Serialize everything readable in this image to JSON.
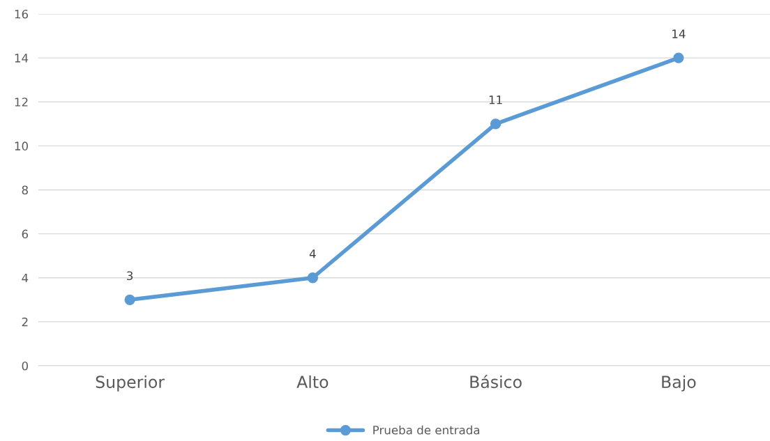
{
  "chart_data": {
    "type": "line",
    "categories": [
      "Superior",
      "Alto",
      "Básico",
      "Bajo"
    ],
    "series": [
      {
        "name": "Prueba de entrada",
        "color": "#5b9bd5",
        "values": [
          3,
          4,
          11,
          14
        ]
      }
    ],
    "ylim": [
      0,
      16
    ],
    "yticks": [
      0,
      2,
      4,
      6,
      8,
      10,
      12,
      14,
      16
    ],
    "grid": "y",
    "legend": "bottom",
    "marker": "circle",
    "line_style": "solid",
    "data_labels": true
  }
}
